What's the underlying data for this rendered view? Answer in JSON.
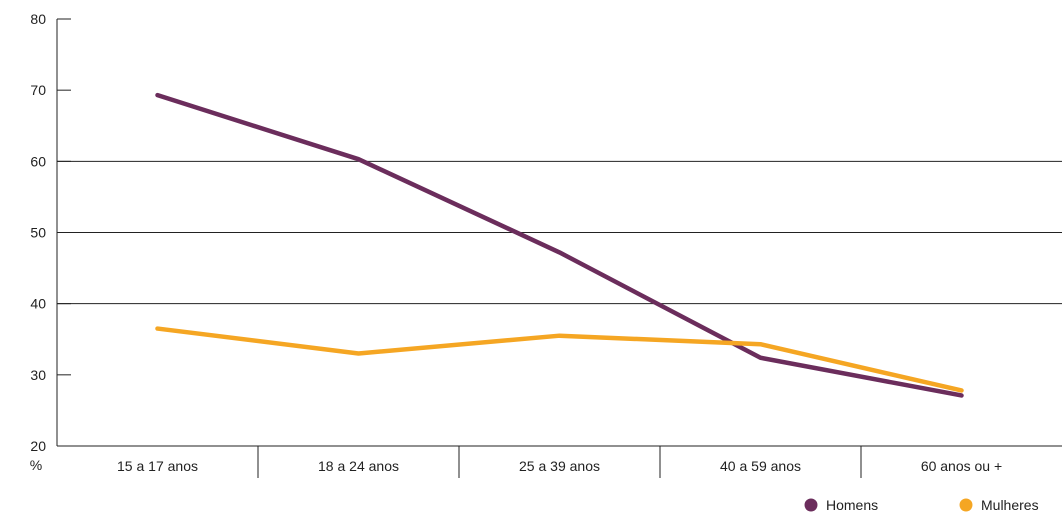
{
  "chart_data": {
    "type": "line",
    "categories": [
      "15 a 17 anos",
      "18 a 24 anos",
      "25 a 39 anos",
      "40 a 59 anos",
      "60 anos ou +"
    ],
    "series": [
      {
        "name": "Homens",
        "values": [
          69.3,
          60.3,
          47.2,
          32.4,
          27.1
        ],
        "color": "#6b2d5c"
      },
      {
        "name": "Mulheres",
        "values": [
          36.5,
          33.0,
          35.5,
          34.3,
          27.8
        ],
        "color": "#f5a623"
      }
    ],
    "yunit": "%",
    "ylim": [
      20,
      80
    ],
    "yticks": [
      20,
      30,
      40,
      50,
      60,
      70,
      80
    ],
    "gridlines": [
      40,
      50,
      60
    ],
    "legend_position": "bottom-right"
  }
}
